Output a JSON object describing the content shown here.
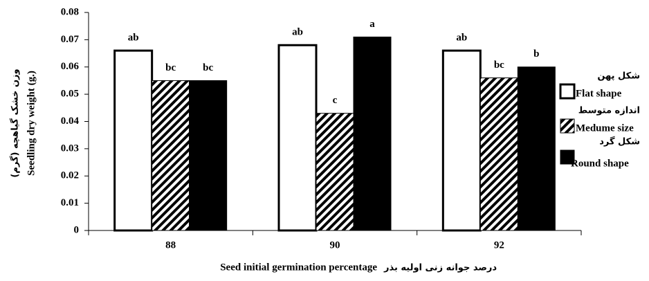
{
  "chart_data": {
    "type": "bar",
    "ylabel": "Seedling dry weight (g.)",
    "ylabel_fa": "وزن خشک گیاهچه (گرم)",
    "xlabel": "Seed initial germination percentage",
    "xlabel_fa": "درصد جوانه زنی اولیه بذر",
    "categories": [
      "88",
      "90",
      "92"
    ],
    "series": [
      {
        "name": "Flat shape",
        "name_fa": "شکل پهن",
        "color": "#ffffff",
        "fill": "solid",
        "values": [
          0.066,
          0.068,
          0.066
        ],
        "labels": [
          "ab",
          "ab",
          "ab"
        ]
      },
      {
        "name": "Medume size",
        "name_fa": "اندازه متوسط",
        "color": "#000000",
        "fill": "hatch",
        "values": [
          0.055,
          0.043,
          0.056
        ],
        "labels": [
          "bc",
          "c",
          "bc"
        ]
      },
      {
        "name": "Round shape",
        "name_fa": "شکل گرد",
        "color": "#000000",
        "fill": "solid",
        "values": [
          0.055,
          0.071,
          0.06
        ],
        "labels": [
          "bc",
          "a",
          "b"
        ]
      }
    ],
    "ylim": [
      0,
      0.08
    ],
    "yticks": [
      0,
      0.01,
      0.02,
      0.03,
      0.04,
      0.05,
      0.06,
      0.07,
      0.08
    ],
    "legend": "right",
    "grid": false
  }
}
